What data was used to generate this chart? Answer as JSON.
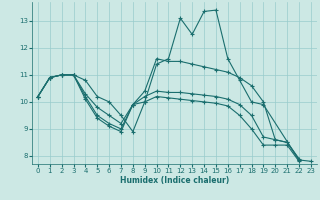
{
  "xlabel": "Humidex (Indice chaleur)",
  "background_color": "#cce8e4",
  "grid_color": "#99cccc",
  "line_color": "#1a6e6e",
  "xlim": [
    -0.5,
    23.5
  ],
  "ylim": [
    7.7,
    13.7
  ],
  "yticks": [
    8,
    9,
    10,
    11,
    12,
    13
  ],
  "xticks": [
    0,
    1,
    2,
    3,
    4,
    5,
    6,
    7,
    8,
    9,
    10,
    11,
    12,
    13,
    14,
    15,
    16,
    17,
    18,
    19,
    20,
    21,
    22,
    23
  ],
  "series": [
    [
      10.2,
      10.9,
      11.0,
      11.0,
      10.8,
      10.2,
      10.0,
      9.5,
      8.9,
      10.0,
      11.4,
      11.6,
      13.1,
      12.5,
      13.35,
      13.4,
      11.6,
      10.8,
      10.0,
      9.9,
      null,
      null,
      7.85,
      7.8
    ],
    [
      10.2,
      10.9,
      11.0,
      11.0,
      10.3,
      9.8,
      9.5,
      9.2,
      9.9,
      10.4,
      11.6,
      11.5,
      11.5,
      11.4,
      11.3,
      11.2,
      11.1,
      10.9,
      10.6,
      10.0,
      8.6,
      8.5,
      7.85,
      null
    ],
    [
      10.2,
      10.9,
      11.0,
      11.0,
      10.2,
      9.5,
      9.2,
      9.0,
      9.9,
      10.2,
      10.4,
      10.35,
      10.35,
      10.3,
      10.25,
      10.2,
      10.1,
      9.9,
      9.5,
      8.7,
      8.6,
      8.5,
      7.9,
      null
    ],
    [
      10.2,
      10.9,
      11.0,
      11.0,
      10.1,
      9.4,
      9.1,
      8.9,
      9.9,
      10.0,
      10.2,
      10.15,
      10.1,
      10.05,
      10.0,
      9.95,
      9.85,
      9.5,
      9.0,
      8.4,
      8.4,
      8.4,
      7.8,
      null
    ]
  ]
}
